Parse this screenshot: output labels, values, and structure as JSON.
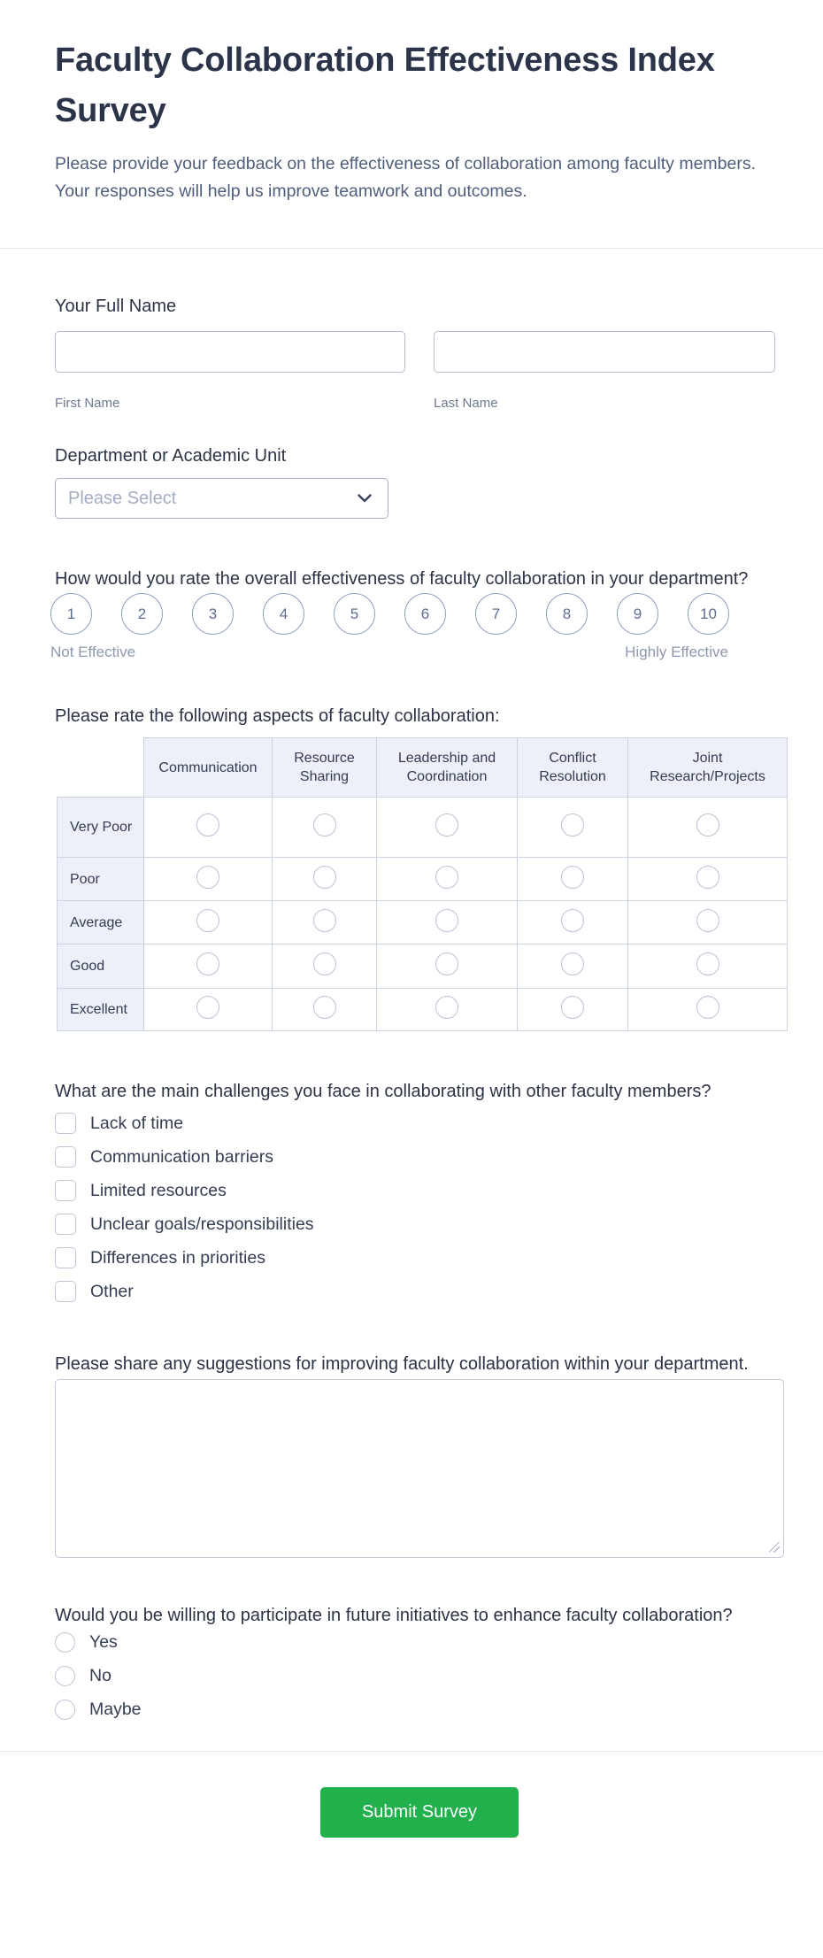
{
  "header": {
    "title": "Faculty Collaboration Effectiveness Index Survey",
    "description": "Please provide your feedback on the effectiveness of collaboration among faculty members. Your responses will help us improve teamwork and outcomes."
  },
  "full_name": {
    "label": "Your Full Name",
    "first_value": "",
    "first_sublabel": "First Name",
    "last_value": "",
    "last_sublabel": "Last Name"
  },
  "department": {
    "label": "Department or Academic Unit",
    "placeholder": "Please Select",
    "icon": "chevron-down-icon"
  },
  "scale": {
    "label": "How would you rate the overall effectiveness of faculty collaboration in your department?",
    "options": [
      "1",
      "2",
      "3",
      "4",
      "5",
      "6",
      "7",
      "8",
      "9",
      "10"
    ],
    "min_label": "Not Effective",
    "max_label": "Highly Effective"
  },
  "matrix": {
    "label": "Please rate the following aspects of faculty collaboration:",
    "columns": [
      "Communication",
      "Resource Sharing",
      "Leadership and Coordination",
      "Conflict Resolution",
      "Joint Research/Projects"
    ],
    "rows": [
      "Very Poor",
      "Poor",
      "Average",
      "Good",
      "Excellent"
    ]
  },
  "challenges": {
    "label": "What are the main challenges you face in collaborating with other faculty members?",
    "options": [
      "Lack of time",
      "Communication barriers",
      "Limited resources",
      "Unclear goals/responsibilities",
      "Differences in priorities",
      "Other"
    ]
  },
  "suggestions": {
    "label": "Please share any suggestions for improving faculty collaboration within your department.",
    "value": ""
  },
  "future": {
    "label": "Would you be willing to participate in future initiatives to enhance faculty collaboration?",
    "options": [
      "Yes",
      "No",
      "Maybe"
    ]
  },
  "submit": {
    "label": "Submit Survey"
  },
  "colors": {
    "submit_green": "#22b04c",
    "text_dark": "#2c3345",
    "text_muted": "#4f5e7b",
    "border_input": "#b5bccb",
    "matrix_header_bg": "#edf0f8",
    "divider": "#e7e9f0"
  }
}
